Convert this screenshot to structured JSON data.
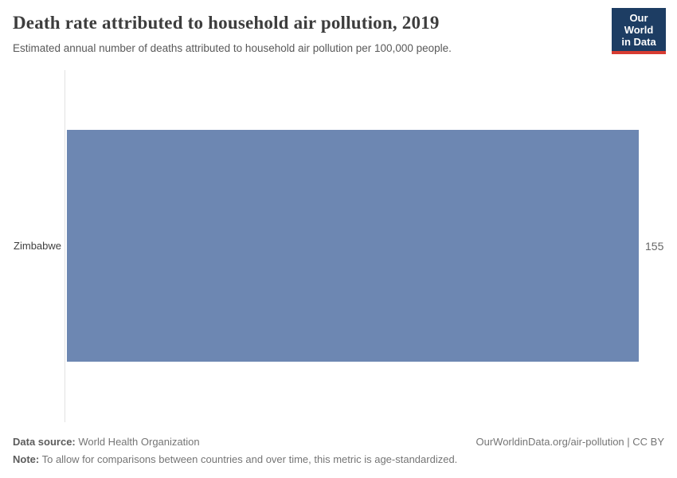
{
  "header": {
    "title": "Death rate attributed to household air pollution, 2019",
    "subtitle": "Estimated annual number of deaths attributed to household air pollution per 100,000 people.",
    "logo": {
      "line1": "Our World",
      "line2": "in Data",
      "bg_color": "#1d3d63",
      "stripe_color": "#d73c32"
    }
  },
  "chart_data": {
    "type": "bar",
    "orientation": "horizontal",
    "title": "Death rate attributed to household air pollution, 2019",
    "categories": [
      "Zimbabwe"
    ],
    "values": [
      155
    ],
    "value_labels": [
      "155"
    ],
    "xlabel": "",
    "ylabel": "",
    "xlim": [
      0,
      155
    ],
    "grid": false,
    "legend": "none",
    "bar_color": "#6d87b2",
    "axis_line_color": "#e2e2e2"
  },
  "footer": {
    "datasource_label": "Data source:",
    "datasource_value": " World Health Organization",
    "link": "OurWorldinData.org/air-pollution | CC BY",
    "note_label": "Note:",
    "note_value": " To allow for comparisons between countries and over time, this metric is age-standardized."
  }
}
